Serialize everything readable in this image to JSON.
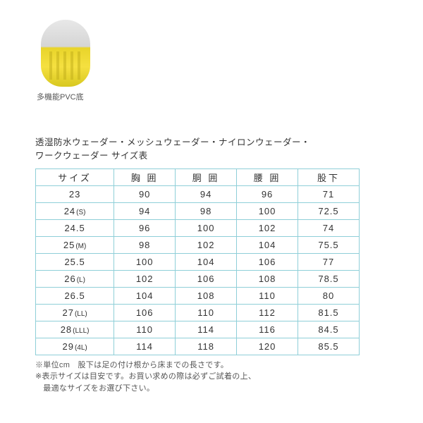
{
  "image_caption": "多機能PVC底",
  "table_title_line1": "透湿防水ウェーダー・メッシュウェーダー・ナイロンウェーダー・",
  "table_title_line2": "ワークウェーダー サイズ表",
  "headers": {
    "size": "サイズ",
    "chest": "胸 囲",
    "waist": "胴 囲",
    "hip": "腰 囲",
    "inseam": "股下"
  },
  "rows": [
    {
      "size": "23",
      "suffix": "",
      "chest": "90",
      "waist": "94",
      "hip": "96",
      "inseam": "71"
    },
    {
      "size": "24",
      "suffix": "(S)",
      "chest": "94",
      "waist": "98",
      "hip": "100",
      "inseam": "72.5"
    },
    {
      "size": "24.5",
      "suffix": "",
      "chest": "96",
      "waist": "100",
      "hip": "102",
      "inseam": "74"
    },
    {
      "size": "25",
      "suffix": "(M)",
      "chest": "98",
      "waist": "102",
      "hip": "104",
      "inseam": "75.5"
    },
    {
      "size": "25.5",
      "suffix": "",
      "chest": "100",
      "waist": "104",
      "hip": "106",
      "inseam": "77"
    },
    {
      "size": "26",
      "suffix": "(L)",
      "chest": "102",
      "waist": "106",
      "hip": "108",
      "inseam": "78.5"
    },
    {
      "size": "26.5",
      "suffix": "",
      "chest": "104",
      "waist": "108",
      "hip": "110",
      "inseam": "80"
    },
    {
      "size": "27",
      "suffix": "(LL)",
      "chest": "106",
      "waist": "110",
      "hip": "112",
      "inseam": "81.5"
    },
    {
      "size": "28",
      "suffix": "(LLL)",
      "chest": "110",
      "waist": "114",
      "hip": "116",
      "inseam": "84.5"
    },
    {
      "size": "29",
      "suffix": "(4L)",
      "chest": "114",
      "waist": "118",
      "hip": "120",
      "inseam": "85.5"
    }
  ],
  "note1": "※単位cm　股下は足の付け根から床までの長さです。",
  "note2": "※表示サイズは目安です。お買い求めの際は必ずご試着の上、",
  "note3": "　最適なサイズをお選び下さい。",
  "colors": {
    "border": "#8fcfd8",
    "background": "#ffffff",
    "text": "#333333",
    "note_text": "#555555"
  }
}
